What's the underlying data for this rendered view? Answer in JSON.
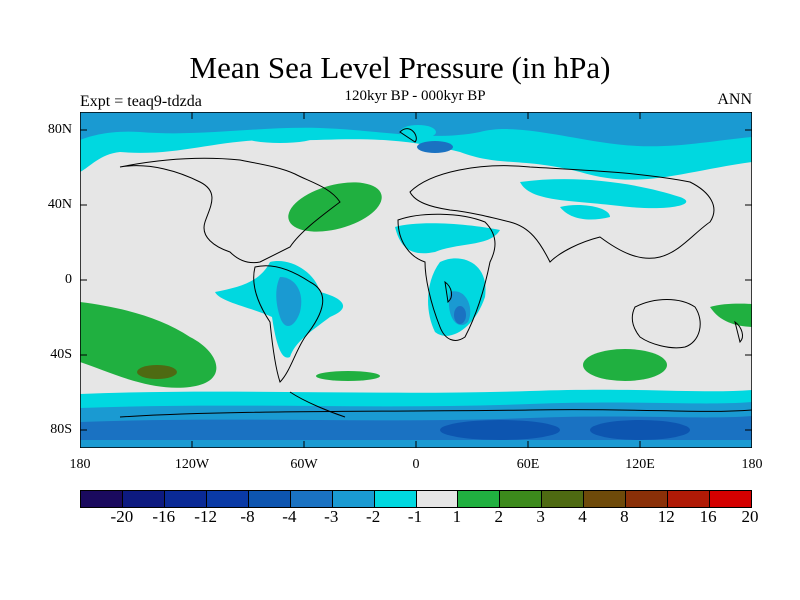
{
  "title": "Mean Sea Level Pressure (in hPa)",
  "subtitle": "120kyr BP - 000kyr BP",
  "experiment": "Expt = teaq9-tdzda",
  "season": "ANN",
  "lat_labels": [
    "80N",
    "40N",
    "0",
    "40S",
    "80S"
  ],
  "lon_labels": [
    "180",
    "120W",
    "60W",
    "0",
    "60E",
    "120E",
    "180"
  ],
  "colorbar": {
    "labels": [
      "-20",
      "-16",
      "-12",
      "-8",
      "-4",
      "-3",
      "-2",
      "-1",
      "1",
      "2",
      "3",
      "4",
      "8",
      "12",
      "16",
      "20"
    ],
    "colors": [
      "#1a0a5e",
      "#0d1a80",
      "#0a2a96",
      "#0a3aa6",
      "#0d55b0",
      "#1a72c2",
      "#1a9ad2",
      "#00d8e0",
      "#e6e6e6",
      "#20b040",
      "#3c8a1c",
      "#4e6a12",
      "#6e4a0a",
      "#8a3008",
      "#b01a06",
      "#d40000"
    ]
  },
  "chart_data": {
    "type": "heatmap",
    "title": "Mean Sea Level Pressure (in hPa)",
    "subtitle": "120kyr BP - 000kyr BP",
    "x_range": [
      -180,
      180
    ],
    "y_range": [
      -90,
      90
    ],
    "levels": [
      -20,
      -16,
      -12,
      -8,
      -4,
      -3,
      -2,
      -1,
      1,
      2,
      3,
      4,
      8,
      12,
      16,
      20
    ]
  }
}
